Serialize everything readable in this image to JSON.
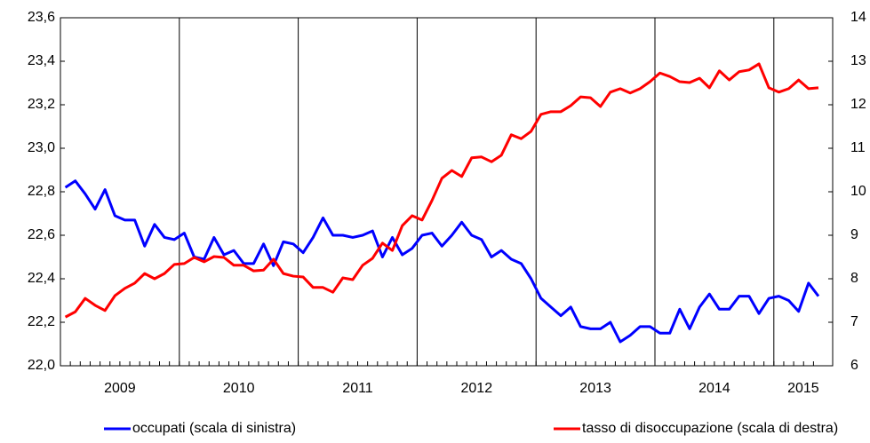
{
  "chart_data": {
    "type": "line",
    "categories": [
      "2009",
      "2009",
      "2009",
      "2009",
      "2009",
      "2009",
      "2009",
      "2009",
      "2009",
      "2009",
      "2009",
      "2009",
      "2010",
      "2010",
      "2010",
      "2010",
      "2010",
      "2010",
      "2010",
      "2010",
      "2010",
      "2010",
      "2010",
      "2010",
      "2011",
      "2011",
      "2011",
      "2011",
      "2011",
      "2011",
      "2011",
      "2011",
      "2011",
      "2011",
      "2011",
      "2011",
      "2012",
      "2012",
      "2012",
      "2012",
      "2012",
      "2012",
      "2012",
      "2012",
      "2012",
      "2012",
      "2012",
      "2012",
      "2013",
      "2013",
      "2013",
      "2013",
      "2013",
      "2013",
      "2013",
      "2013",
      "2013",
      "2013",
      "2013",
      "2013",
      "2014",
      "2014",
      "2014",
      "2014",
      "2014",
      "2014",
      "2014",
      "2014",
      "2014",
      "2014",
      "2014",
      "2014",
      "2015",
      "2015",
      "2015",
      "2015",
      "2015"
    ],
    "series": [
      {
        "name": "occupati (scala di sinistra)",
        "color": "#0000ff",
        "values": [
          22.82,
          22.85,
          22.79,
          22.72,
          22.81,
          22.69,
          22.67,
          22.67,
          22.55,
          22.65,
          22.59,
          22.58,
          22.61,
          22.5,
          22.49,
          22.59,
          22.51,
          22.53,
          22.47,
          22.47,
          22.56,
          22.46,
          22.57,
          22.56,
          22.52,
          22.59,
          22.68,
          22.6,
          22.6,
          22.59,
          22.6,
          22.62,
          22.5,
          22.59,
          22.51,
          22.54,
          22.6,
          22.61,
          22.55,
          22.6,
          22.66,
          22.6,
          22.58,
          22.5,
          22.53,
          22.49,
          22.47,
          22.4,
          22.31,
          22.27,
          22.23,
          22.27,
          22.18,
          22.17,
          22.17,
          22.2,
          22.11,
          22.14,
          22.18,
          22.18,
          22.15,
          22.15,
          22.26,
          22.17,
          22.27,
          22.33,
          22.26,
          22.26,
          22.32,
          22.32,
          22.24,
          22.31,
          22.32,
          22.3,
          22.25,
          22.38,
          22.32
        ]
      },
      {
        "name": "tasso di disoccupazione (scala di destra)",
        "color": "#ff0000",
        "axis": "y2",
        "values": [
          7.12,
          7.24,
          7.55,
          7.39,
          7.27,
          7.61,
          7.78,
          7.9,
          8.12,
          8.0,
          8.12,
          8.33,
          8.35,
          8.49,
          8.39,
          8.51,
          8.49,
          8.31,
          8.31,
          8.18,
          8.2,
          8.45,
          8.12,
          8.06,
          8.04,
          7.8,
          7.8,
          7.69,
          8.02,
          7.98,
          8.31,
          8.47,
          8.82,
          8.65,
          9.22,
          9.45,
          9.35,
          9.8,
          10.31,
          10.49,
          10.35,
          10.78,
          10.8,
          10.69,
          10.84,
          11.31,
          11.22,
          11.39,
          11.78,
          11.84,
          11.84,
          11.98,
          12.18,
          12.16,
          11.96,
          12.29,
          12.37,
          12.27,
          12.37,
          12.53,
          12.73,
          12.65,
          12.53,
          12.51,
          12.61,
          12.39,
          12.78,
          12.57,
          12.76,
          12.8,
          12.94,
          12.39,
          12.29,
          12.37,
          12.57,
          12.37,
          12.39
        ]
      }
    ],
    "ylim": [
      22.0,
      23.6
    ],
    "yticks": [
      {
        "value": 22.0,
        "label": "22,0"
      },
      {
        "value": 22.2,
        "label": "22,2"
      },
      {
        "value": 22.4,
        "label": "22,4"
      },
      {
        "value": 22.6,
        "label": "22,6"
      },
      {
        "value": 22.8,
        "label": "22,8"
      },
      {
        "value": 23.0,
        "label": "23,0"
      },
      {
        "value": 23.2,
        "label": "23,2"
      },
      {
        "value": 23.4,
        "label": "23,4"
      },
      {
        "value": 23.6,
        "label": "23,6"
      }
    ],
    "y2lim": [
      6,
      14
    ],
    "y2ticks": [
      6,
      7,
      8,
      9,
      10,
      11,
      12,
      13,
      14
    ],
    "legend": "bottom"
  }
}
